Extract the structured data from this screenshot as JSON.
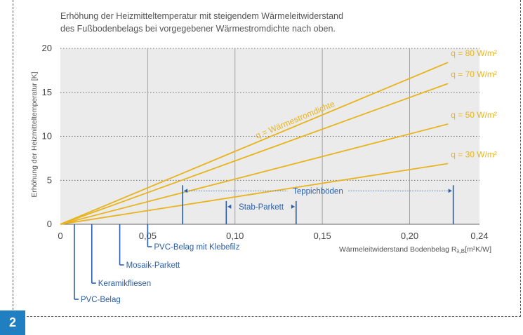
{
  "chart_data": {
    "type": "line",
    "title": [
      "Erhöhung der Heizmitteltemperatur mit steigendem Wärmeleitwiderstand",
      "des Fußbodenbelags bei vorgegebener Wärmestromdichte nach oben."
    ],
    "ylabel": "Erhöhung der Heizmitteltemperatur [K]",
    "xlabel": "Wärmeleitwiderstand Bodenbelag R",
    "xlabel_sub": "λ,B",
    "xlabel_unit": "[m²K/W]",
    "xlim": [
      0,
      0.24
    ],
    "ylim": [
      0,
      20
    ],
    "x_ticks": [
      {
        "value": 0,
        "label": "0"
      },
      {
        "value": 0.05,
        "label": "0,05"
      },
      {
        "value": 0.1,
        "label": "0,10"
      },
      {
        "value": 0.15,
        "label": "0,15"
      },
      {
        "value": 0.2,
        "label": "0,20"
      },
      {
        "value": 0.24,
        "label": "0,24"
      }
    ],
    "y_ticks": [
      {
        "value": 0,
        "label": "0"
      },
      {
        "value": 5,
        "label": "5"
      },
      {
        "value": 10,
        "label": "10"
      },
      {
        "value": 15,
        "label": "15"
      },
      {
        "value": 20,
        "label": "20"
      }
    ],
    "grid": true,
    "series": [
      {
        "name": "q = 80 W/m²",
        "x": [
          0,
          0.222
        ],
        "y": [
          0,
          18.4
        ]
      },
      {
        "name": "q = 70 W/m²",
        "x": [
          0,
          0.222
        ],
        "y": [
          0,
          16.0
        ]
      },
      {
        "name": "q = 50 W/m²",
        "x": [
          0,
          0.222
        ],
        "y": [
          0,
          11.4
        ]
      },
      {
        "name": "q = 30 W/m²",
        "x": [
          0,
          0.222
        ],
        "y": [
          0,
          6.9
        ]
      }
    ],
    "annotation": "q = Wärmestromdichte",
    "annotation_angle_near_series": "q = 80 W/m²",
    "materials": [
      {
        "name": "PVC-Belag",
        "x": 0.008
      },
      {
        "name": "Keramikfliesen",
        "x": 0.018
      },
      {
        "name": "Mosaik-Parkett",
        "x": 0.034
      },
      {
        "name": "PVC-Belag mit Klebefilz",
        "x": 0.05
      }
    ],
    "ranges": [
      {
        "name": "Stab-Parkett",
        "x_start": 0.095,
        "x_end": 0.135,
        "y": 2.0
      },
      {
        "name": "Teppichböden",
        "x_start": 0.07,
        "x_end": 0.225,
        "y": 3.8
      }
    ],
    "colors": {
      "line": "#e8b41e",
      "material": "#2a5ea8",
      "background": "#ebebeb",
      "badge": "#1f7fc1"
    }
  },
  "figure_number": "2"
}
